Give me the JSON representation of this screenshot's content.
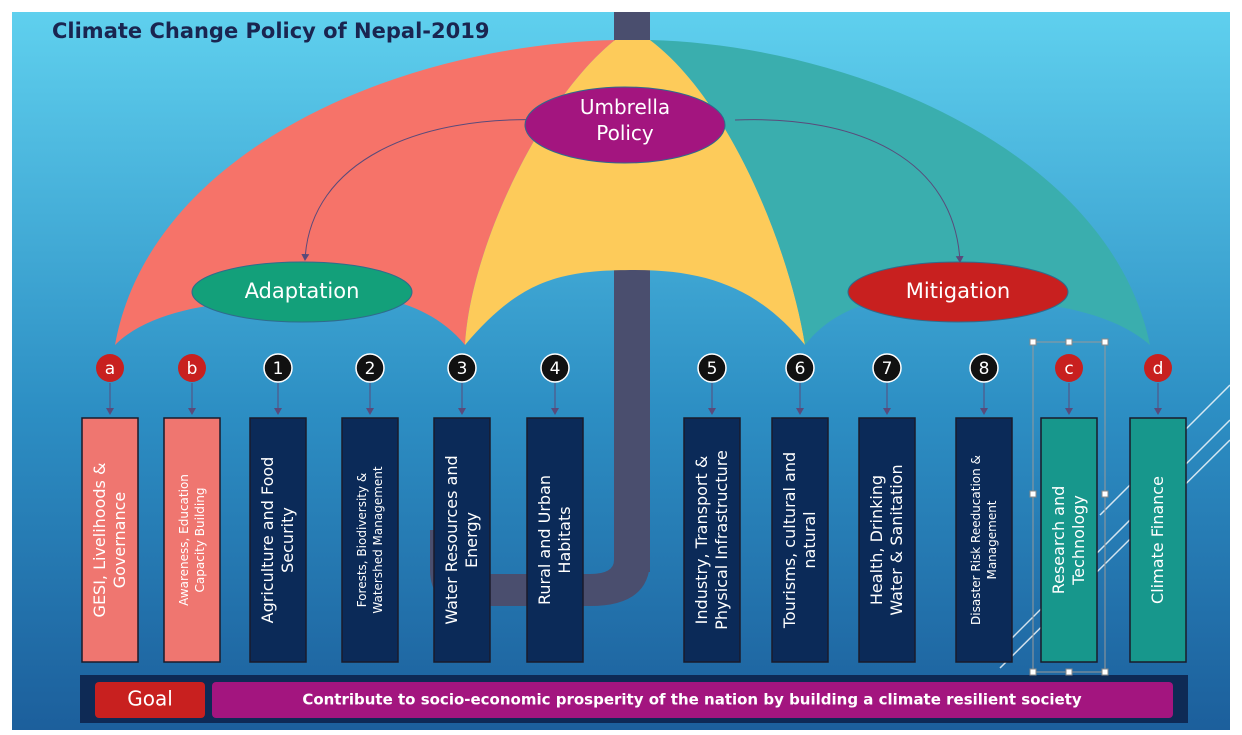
{
  "title": "Climate Change Policy of Nepal-2019",
  "umbrella": "Umbrella Policy",
  "branches": {
    "adaptation": "Adaptation",
    "mitigation": "Mitigation"
  },
  "items": [
    {
      "marker": "a",
      "lines": [
        "GESI, Livelihoods &",
        "Governance"
      ]
    },
    {
      "marker": "b",
      "lines": [
        "Awareness, Education",
        "Capacity Building"
      ]
    },
    {
      "marker": "1",
      "lines": [
        "Agriculture and Food",
        "Security"
      ]
    },
    {
      "marker": "2",
      "lines": [
        "Forests, Biodiversity &",
        "Watershed Management"
      ]
    },
    {
      "marker": "3",
      "lines": [
        "Water Resources and",
        "Energy"
      ]
    },
    {
      "marker": "4",
      "lines": [
        "Rural and Urban",
        "Habitats"
      ]
    },
    {
      "marker": "5",
      "lines": [
        "Industry, Transport &",
        "Physical Infrastructure"
      ]
    },
    {
      "marker": "6",
      "lines": [
        "Tourisms, cultural and",
        "natural"
      ]
    },
    {
      "marker": "7",
      "lines": [
        "Health, Drinking",
        "Water & Sanitation"
      ]
    },
    {
      "marker": "8",
      "lines": [
        "Disaster Risk Reeducation &",
        "Management"
      ]
    },
    {
      "marker": "c",
      "lines": [
        "Research and",
        "Technology"
      ]
    },
    {
      "marker": "d",
      "lines": [
        "Climate Finance"
      ]
    }
  ],
  "goal": {
    "label": "Goal",
    "text": "Contribute to socio-economic prosperity of the nation by building a climate resilient society"
  }
}
